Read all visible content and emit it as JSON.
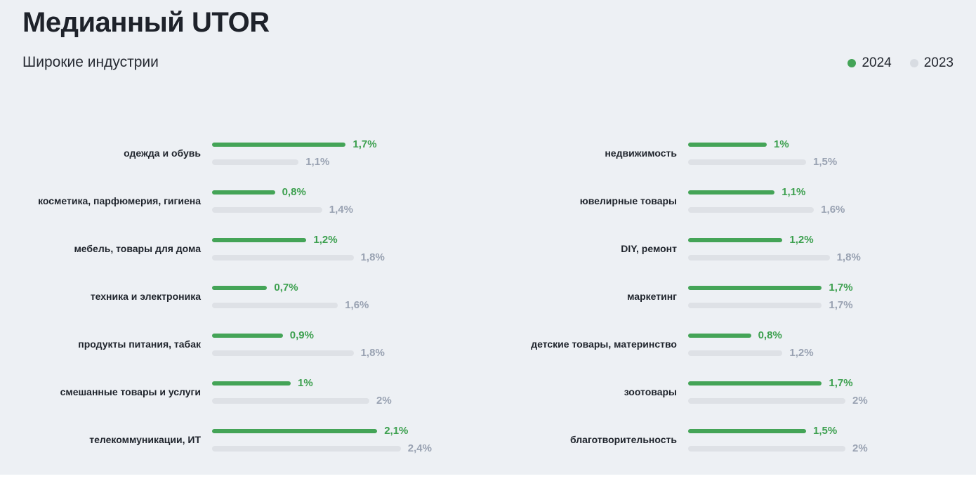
{
  "header": {
    "title": "Медианный UTOR",
    "subtitle": "Широкие индустрии"
  },
  "legend": {
    "items": [
      {
        "label": "2024",
        "color": "#44a457"
      },
      {
        "label": "2023",
        "color": "#d8dce2"
      }
    ]
  },
  "colors": {
    "background": "#edf0f4",
    "bar_2024": "#44a457",
    "bar_2023": "#dee1e6",
    "value_2024_text": "#3da04f",
    "value_2023_text": "#99a2b2",
    "title_text": "#1e222a"
  },
  "chart_data": {
    "type": "bar",
    "orientation": "horizontal",
    "title": "Медианный UTOR",
    "subtitle": "Широкие индустрии",
    "unit": "%",
    "legend_position": "top-right",
    "grid": false,
    "series_names": [
      "2024",
      "2023"
    ],
    "columns": [
      {
        "rows": [
          {
            "category": "одежда и обувь",
            "v2024": 1.7,
            "v2023": 1.1,
            "d2024": "1,7%",
            "d2023": "1,1%"
          },
          {
            "category": "косметика, парфюмерия, гигиена",
            "v2024": 0.8,
            "v2023": 1.4,
            "d2024": "0,8%",
            "d2023": "1,4%"
          },
          {
            "category": "мебель, товары для дома",
            "v2024": 1.2,
            "v2023": 1.8,
            "d2024": "1,2%",
            "d2023": "1,8%"
          },
          {
            "category": "техника и электроника",
            "v2024": 0.7,
            "v2023": 1.6,
            "d2024": "0,7%",
            "d2023": "1,6%"
          },
          {
            "category": "продукты питания, табак",
            "v2024": 0.9,
            "v2023": 1.8,
            "d2024": "0,9%",
            "d2023": "1,8%"
          },
          {
            "category": "смешанные товары и услуги",
            "v2024": 1.0,
            "v2023": 2.0,
            "d2024": "1%",
            "d2023": "2%"
          },
          {
            "category": "телекоммуникации, ИТ",
            "v2024": 2.1,
            "v2023": 2.4,
            "d2024": "2,1%",
            "d2023": "2,4%"
          }
        ]
      },
      {
        "rows": [
          {
            "category": "недвижимость",
            "v2024": 1.0,
            "v2023": 1.5,
            "d2024": "1%",
            "d2023": "1,5%"
          },
          {
            "category": "ювелирные товары",
            "v2024": 1.1,
            "v2023": 1.6,
            "d2024": "1,1%",
            "d2023": "1,6%"
          },
          {
            "category": "DIY, ремонт",
            "v2024": 1.2,
            "v2023": 1.8,
            "d2024": "1,2%",
            "d2023": "1,8%"
          },
          {
            "category": "маркетинг",
            "v2024": 1.7,
            "v2023": 1.7,
            "d2024": "1,7%",
            "d2023": "1,7%"
          },
          {
            "category": "детские товары, материнство",
            "v2024": 0.8,
            "v2023": 1.2,
            "d2024": "0,8%",
            "d2023": "1,2%"
          },
          {
            "category": "зоотовары",
            "v2024": 1.7,
            "v2023": 2.0,
            "d2024": "1,7%",
            "d2023": "2%"
          },
          {
            "category": "благотворительность",
            "v2024": 1.5,
            "v2023": 2.0,
            "d2024": "1,5%",
            "d2023": "2%"
          }
        ]
      }
    ]
  }
}
